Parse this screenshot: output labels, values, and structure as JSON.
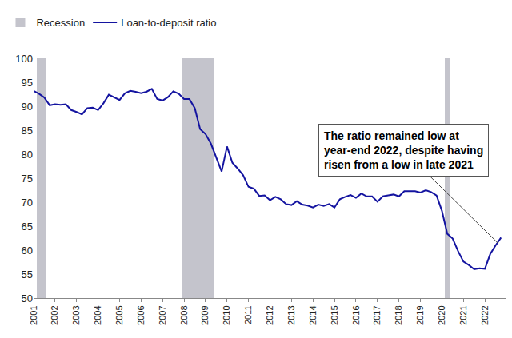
{
  "chart_data": {
    "type": "line",
    "x": [
      2001,
      2001.25,
      2001.5,
      2001.75,
      2002,
      2002.25,
      2002.5,
      2002.75,
      2003,
      2003.25,
      2003.5,
      2003.75,
      2004,
      2004.25,
      2004.5,
      2004.75,
      2005,
      2005.25,
      2005.5,
      2005.75,
      2006,
      2006.25,
      2006.5,
      2006.75,
      2007,
      2007.25,
      2007.5,
      2007.75,
      2008,
      2008.25,
      2008.5,
      2008.75,
      2009,
      2009.25,
      2009.5,
      2009.75,
      2010,
      2010.25,
      2010.5,
      2010.75,
      2011,
      2011.25,
      2011.5,
      2011.75,
      2012,
      2012.25,
      2012.5,
      2012.75,
      2013,
      2013.25,
      2013.5,
      2013.75,
      2014,
      2014.25,
      2014.5,
      2014.75,
      2015,
      2015.25,
      2015.5,
      2015.75,
      2016,
      2016.25,
      2016.5,
      2016.75,
      2017,
      2017.25,
      2017.5,
      2017.75,
      2018,
      2018.25,
      2018.5,
      2018.75,
      2019,
      2019.25,
      2019.5,
      2019.75,
      2020,
      2020.25,
      2020.5,
      2020.75,
      2021,
      2021.25,
      2021.5,
      2021.75,
      2022,
      2022.25,
      2022.5,
      2022.75
    ],
    "series": [
      {
        "name": "Recession",
        "type": "bar",
        "color": "#c4c4cc",
        "periods": [
          [
            2001.15,
            2001.6
          ],
          [
            2007.9,
            2009.4
          ],
          [
            2020.15,
            2020.35
          ]
        ]
      },
      {
        "name": "Loan-to-deposit ratio",
        "type": "line",
        "color": "#1414a0",
        "values": [
          93.2,
          92.6,
          91.8,
          90.2,
          90.4,
          90.3,
          90.4,
          89.2,
          88.8,
          88.3,
          89.6,
          89.7,
          89.2,
          90.6,
          92.4,
          91.8,
          91.3,
          92.7,
          93.2,
          93.0,
          92.7,
          93.0,
          93.6,
          91.5,
          91.2,
          91.9,
          93.1,
          92.6,
          91.5,
          91.5,
          89.6,
          85.2,
          84.2,
          82.2,
          79.2,
          76.4,
          81.6,
          78.2,
          77.0,
          75.6,
          73.2,
          72.8,
          71.3,
          71.4,
          70.4,
          71.1,
          70.6,
          69.6,
          69.4,
          70.2,
          69.5,
          69.3,
          68.9,
          69.5,
          69.2,
          69.6,
          68.9,
          70.6,
          71.1,
          71.5,
          70.9,
          71.8,
          71.2,
          71.2,
          70.1,
          71.2,
          71.4,
          71.6,
          71.2,
          72.3,
          72.3,
          72.3,
          72.0,
          72.5,
          72.1,
          71.4,
          68.2,
          63.4,
          62.4,
          59.8,
          57.6,
          56.9,
          56.0,
          56.2,
          56.1,
          59.2,
          61.0,
          62.6
        ]
      }
    ],
    "xlim": [
      2001,
      2023
    ],
    "xticks": [
      2001,
      2002,
      2003,
      2004,
      2005,
      2006,
      2007,
      2008,
      2009,
      2010,
      2011,
      2012,
      2013,
      2014,
      2015,
      2016,
      2017,
      2018,
      2019,
      2020,
      2021,
      2022
    ],
    "ylim": [
      50,
      100
    ],
    "yticks": [
      50,
      55,
      60,
      65,
      70,
      75,
      80,
      85,
      90,
      95,
      100
    ],
    "grid": false,
    "legend": "top left",
    "annotations": [
      {
        "text": [
          "The ratio remained low at",
          "year-end 2022, despite having",
          "risen from a low in late 2021"
        ],
        "x": 2022.6,
        "y": 61.5
      }
    ]
  }
}
